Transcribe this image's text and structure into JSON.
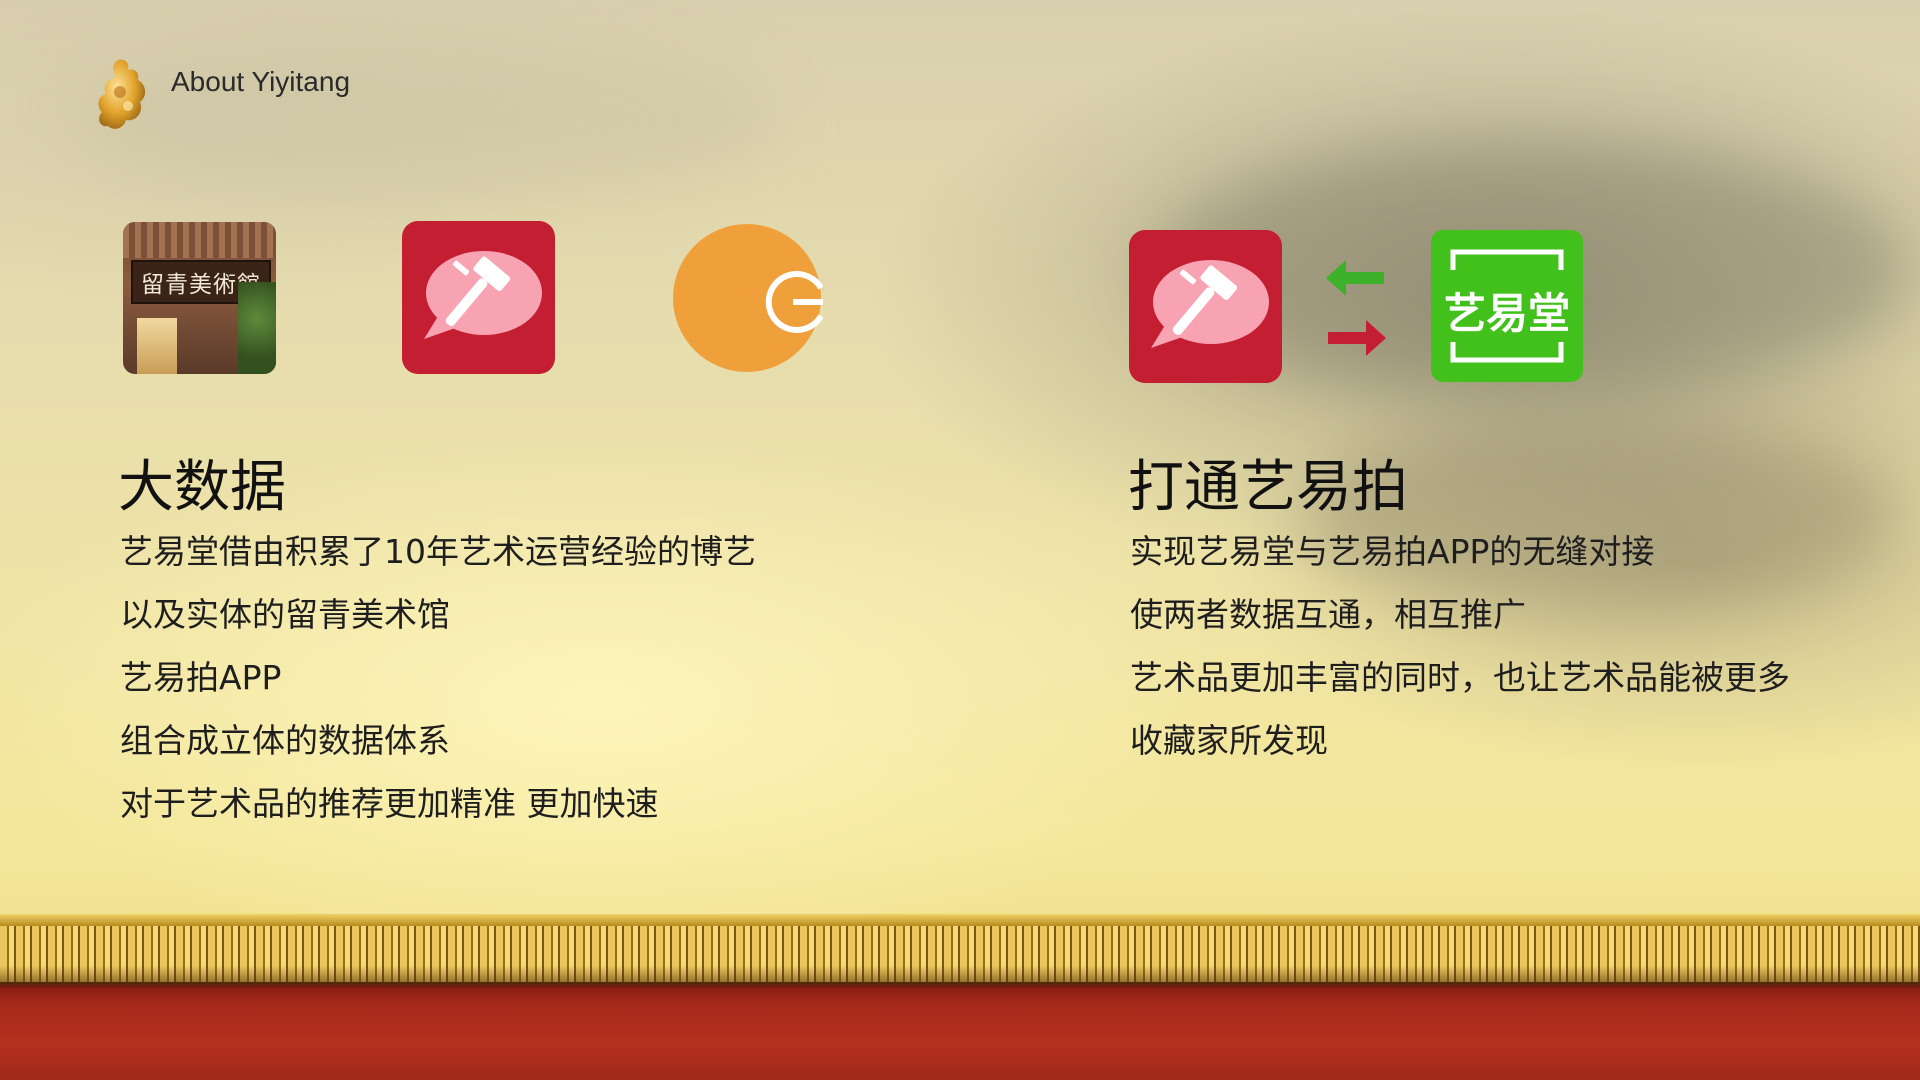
{
  "header": {
    "title": "About Yiyitang"
  },
  "icons": {
    "museum_sign": "留青美術館",
    "green_label": "艺易堂"
  },
  "left": {
    "title": "大数据",
    "lines": [
      "艺易堂借由积累了10年艺术运营经验的博艺",
      "以及实体的留青美术馆",
      "艺易拍APP",
      "组合成立体的数据体系",
      "对于艺术品的推荐更加精准 更加快速"
    ]
  },
  "right": {
    "title": "打通艺易拍",
    "lines": [
      "实现艺易堂与艺易拍APP的无缝对接",
      "使两者数据互通，相互推广",
      "艺术品更加丰富的同时，也让艺术品能被更多",
      "收藏家所发现"
    ]
  },
  "colors": {
    "auction_red": "#c41e33",
    "orange": "#f0a03a",
    "green": "#42c11d",
    "arrow_green": "#3db12a",
    "arrow_red": "#c41e33"
  }
}
